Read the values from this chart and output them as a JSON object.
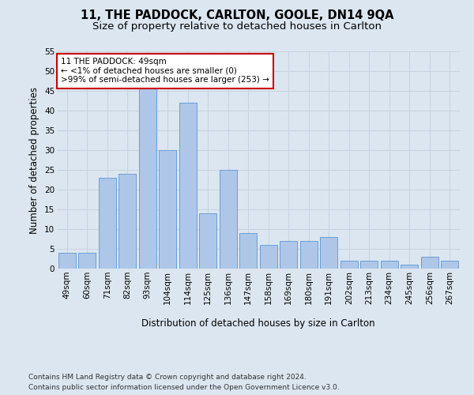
{
  "title": "11, THE PADDOCK, CARLTON, GOOLE, DN14 9QA",
  "subtitle": "Size of property relative to detached houses in Carlton",
  "xlabel": "Distribution of detached houses by size in Carlton",
  "ylabel": "Number of detached properties",
  "categories": [
    "49sqm",
    "60sqm",
    "71sqm",
    "82sqm",
    "93sqm",
    "104sqm",
    "114sqm",
    "125sqm",
    "136sqm",
    "147sqm",
    "158sqm",
    "169sqm",
    "180sqm",
    "191sqm",
    "202sqm",
    "213sqm",
    "234sqm",
    "245sqm",
    "256sqm",
    "267sqm"
  ],
  "values": [
    4,
    4,
    23,
    24,
    46,
    30,
    42,
    14,
    25,
    9,
    6,
    7,
    7,
    8,
    2,
    2,
    2,
    1,
    3,
    2
  ],
  "bar_color": "#aec6e8",
  "bar_edge_color": "#6a9fd8",
  "annotation_box_text": "11 THE PADDOCK: 49sqm\n← <1% of detached houses are smaller (0)\n>99% of semi-detached houses are larger (253) →",
  "annotation_box_color": "#ffffff",
  "annotation_box_edge_color": "#cc0000",
  "ylim": [
    0,
    55
  ],
  "yticks": [
    0,
    5,
    10,
    15,
    20,
    25,
    30,
    35,
    40,
    45,
    50,
    55
  ],
  "grid_color": "#c8d4e0",
  "bg_color": "#dce6f0",
  "footer": "Contains HM Land Registry data © Crown copyright and database right 2024.\nContains public sector information licensed under the Open Government Licence v3.0.",
  "title_fontsize": 10.5,
  "subtitle_fontsize": 9.5,
  "axis_label_fontsize": 8.5,
  "tick_fontsize": 7.5,
  "annotation_fontsize": 7.5,
  "footer_fontsize": 6.5
}
